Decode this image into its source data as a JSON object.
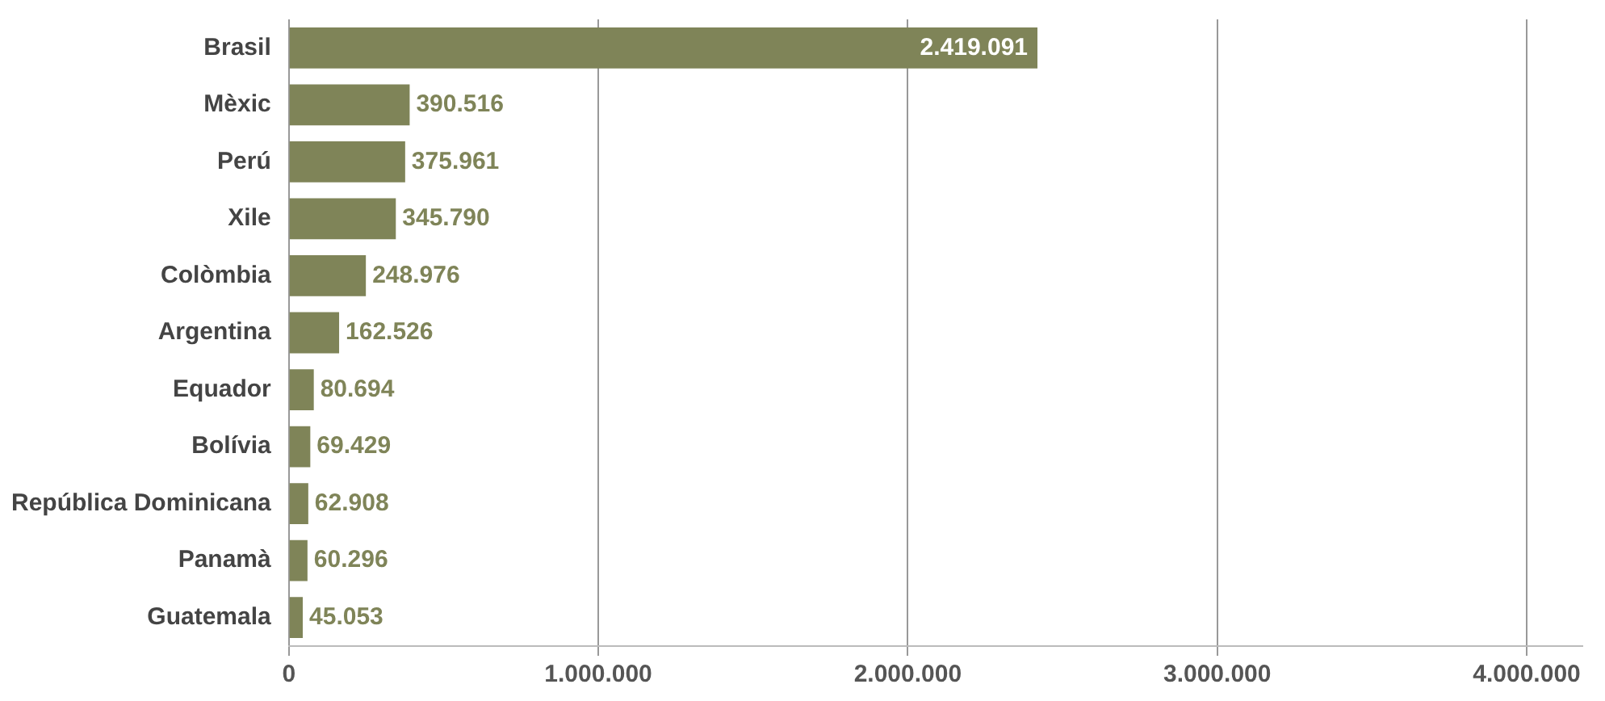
{
  "chart_data": {
    "type": "bar",
    "orientation": "horizontal",
    "categories": [
      "Brasil",
      "Mèxic",
      "Perú",
      "Xile",
      "Colòmbia",
      "Argentina",
      "Equador",
      "Bolívia",
      "República Dominicana",
      "Panamà",
      "Guatemala"
    ],
    "values": [
      2419091,
      390516,
      375961,
      345790,
      248976,
      162526,
      80694,
      69429,
      62908,
      60296,
      45053
    ],
    "color": "#7f8458",
    "value_labels": [
      "2.419.091",
      "390.516",
      "375.961",
      "345.790",
      "248.976",
      "162.526",
      "80.694",
      "69.429",
      "62.908",
      "60.296",
      "45.053"
    ],
    "xlim": [
      0,
      4180000
    ],
    "xticks": [
      0,
      {
        "value": 1000000,
        "label": "1.000.000"
      },
      {
        "value": 2000000,
        "label": "2.000.000"
      },
      {
        "value": 3000000,
        "label": "3.000.000"
      },
      {
        "value": 4000000,
        "label": "4.000.000"
      }
    ],
    "grid": "x",
    "legend": false
  }
}
